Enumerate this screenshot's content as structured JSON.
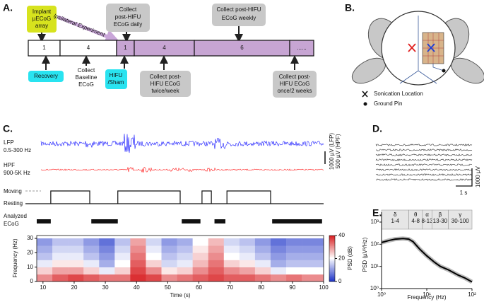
{
  "panels": {
    "A": {
      "label": "A.",
      "implant": [
        "Implant",
        "µECoG",
        "array"
      ],
      "arrow_label": "Ipsilateral Experiment",
      "timeline": [
        "1",
        "4",
        "1",
        "4",
        "6",
        "......"
      ],
      "daily": [
        "Collect",
        "post-HIFU",
        "ECoG daily"
      ],
      "weekly": [
        "Collect post-HIFU",
        "ECoG weekly"
      ],
      "recovery": "Recovery",
      "baseline": [
        "Collect",
        "Baseline",
        "ECoG"
      ],
      "hifu": [
        "HIFU",
        "/Sham"
      ],
      "twice": [
        "Collect post-",
        "HIFU ECoG",
        "twice/week"
      ],
      "once": [
        "Collect post-",
        "HIFU ECoG",
        "once/2 weeks"
      ]
    },
    "B": {
      "label": "B.",
      "legend": [
        "Sonication Location",
        "Ground Pin"
      ]
    },
    "C": {
      "label": "C.",
      "lfp": [
        "LFP",
        "0.5-300 Hz"
      ],
      "hpf": [
        "HPF",
        "900-5K Hz"
      ],
      "scale": [
        "1000 µV (LFP)",
        "500 µV (HPF)"
      ],
      "states": [
        "Moving",
        "Resting"
      ],
      "moving": [
        [
          12.5,
          25
        ],
        [
          34,
          54
        ],
        [
          61,
          64
        ],
        [
          69,
          83
        ]
      ],
      "analyzed_label": [
        "Analyzed",
        "ECoG"
      ],
      "analyzed": [
        [
          8,
          12.5
        ],
        [
          25.5,
          34
        ],
        [
          54.5,
          60.5
        ],
        [
          65,
          68.5
        ],
        [
          83.5,
          99.5
        ]
      ],
      "spectrogram": {
        "xlim": [
          8,
          100
        ],
        "ylim": [
          0,
          32
        ],
        "xticks": [
          10,
          20,
          30,
          40,
          50,
          60,
          70,
          80,
          90,
          100
        ],
        "yticks": [
          0,
          10,
          20,
          30
        ],
        "xlabel": "Time (s)",
        "ylabel": "Frequency (Hz)",
        "time_bins": [
          8,
          13,
          18,
          23,
          28,
          33,
          38,
          43,
          48,
          53,
          58,
          63,
          68,
          73,
          78,
          83,
          88,
          93,
          100
        ],
        "freq_bins": [
          0,
          5,
          10,
          15,
          20,
          25,
          30
        ],
        "values": [
          [
            30,
            34,
            36,
            34,
            32,
            32,
            38,
            36,
            30,
            32,
            34,
            36,
            34,
            34,
            32,
            30,
            32,
            30
          ],
          [
            24,
            28,
            28,
            24,
            18,
            24,
            36,
            30,
            22,
            24,
            30,
            34,
            30,
            28,
            24,
            18,
            20,
            20
          ],
          [
            18,
            22,
            22,
            18,
            12,
            20,
            34,
            24,
            16,
            18,
            26,
            32,
            24,
            22,
            18,
            12,
            14,
            14
          ],
          [
            14,
            18,
            18,
            14,
            10,
            18,
            32,
            20,
            14,
            16,
            24,
            30,
            20,
            18,
            14,
            10,
            12,
            12
          ],
          [
            12,
            16,
            16,
            12,
            8,
            16,
            30,
            18,
            12,
            14,
            22,
            28,
            18,
            16,
            12,
            8,
            10,
            10
          ],
          [
            10,
            14,
            14,
            10,
            6,
            14,
            28,
            16,
            10,
            12,
            20,
            26,
            16,
            14,
            10,
            6,
            8,
            8
          ]
        ],
        "clim": [
          0,
          40
        ],
        "cticks": [
          0,
          20,
          40
        ],
        "clabel": "PSD (dB)",
        "colors": [
          "#1f35c8",
          "#ffffff",
          "#d7191c"
        ]
      }
    },
    "D": {
      "label": "D.",
      "scale_time": "1 s",
      "scale_amp": "1000 µV"
    },
    "E": {
      "label": "E.",
      "type": "line",
      "log_x": true,
      "log_y": true,
      "xlim": [
        1,
        100
      ],
      "ylim": [
        1,
        1000
      ],
      "xticks": [
        {
          "value": 1,
          "label": "10⁰"
        },
        {
          "value": 10,
          "label": "10¹"
        },
        {
          "value": 100,
          "label": "10²"
        }
      ],
      "yticks": [
        {
          "value": 1,
          "label": "10⁰"
        },
        {
          "value": 10,
          "label": "10¹"
        },
        {
          "value": 100,
          "label": "10²"
        },
        {
          "value": 1000,
          "label": "10³"
        }
      ],
      "xlabel": "Frequency (Hz)",
      "ylabel": "PSD (µV²/Hz)",
      "bands": [
        {
          "name": "δ",
          "range": "1-4",
          "lo": 1,
          "hi": 4
        },
        {
          "name": "θ",
          "range": "4-8",
          "lo": 4,
          "hi": 8
        },
        {
          "name": "α",
          "range": "8-13",
          "lo": 8,
          "hi": 13
        },
        {
          "name": "β",
          "range": "13-30",
          "lo": 13,
          "hi": 30
        },
        {
          "name": "γ",
          "range": "30-100",
          "lo": 30,
          "hi": 100
        }
      ],
      "x": [
        1,
        1.5,
        2,
        3,
        4,
        5,
        7,
        10,
        15,
        20,
        30,
        50,
        70,
        100
      ],
      "values": [
        120,
        150,
        170,
        180,
        170,
        130,
        60,
        30,
        15,
        10,
        7,
        4,
        3,
        2
      ],
      "color": "#000000"
    }
  }
}
